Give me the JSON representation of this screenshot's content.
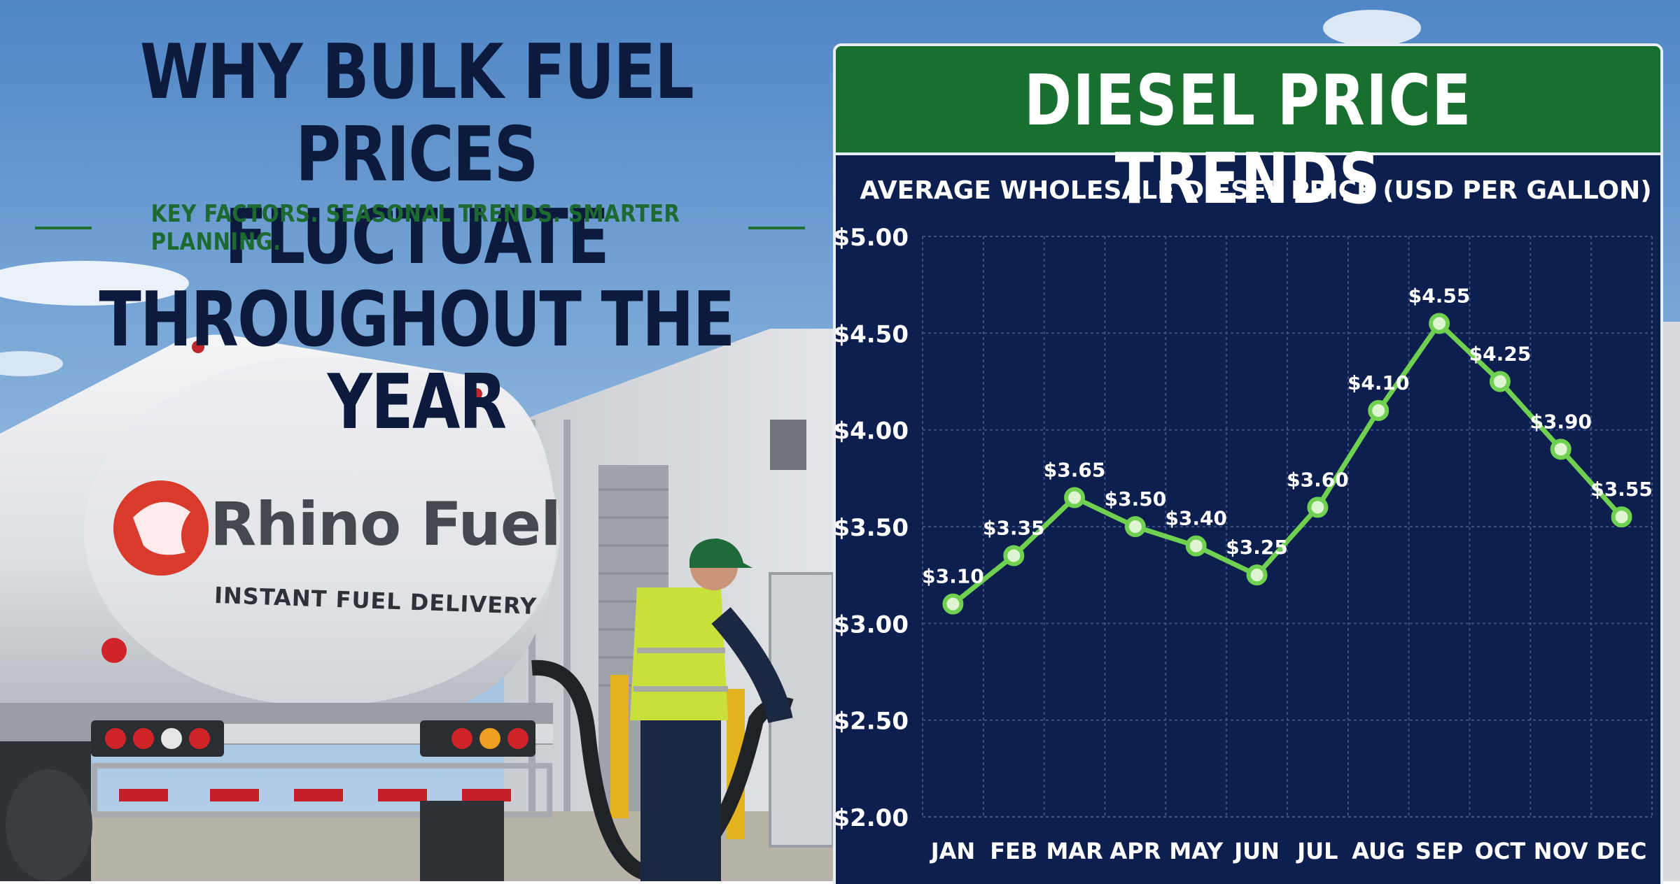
{
  "headline": {
    "line1": "WHY BULK FUEL PRICES",
    "line2": "FLUCTUATE THROUGHOUT THE YEAR",
    "subtitle": "KEY FACTORS. SEASONAL TRENDS. SMARTER PLANNING."
  },
  "truck": {
    "brand": "Rhino Fuel",
    "tagline": "INSTANT FUEL DELIVERY"
  },
  "colors": {
    "navy": "#0d1f4e",
    "green_header": "#17702f",
    "line_green": "#6fd14f",
    "headline_navy": "#0c1b3d"
  },
  "chart_data": {
    "type": "line",
    "title": "DIESEL PRICE TRENDS",
    "subtitle": "AVERAGE WHOLESALE DIESEL PRICE (USD PER GALLON)",
    "categories": [
      "JAN",
      "FEB",
      "MAR",
      "APR",
      "MAY",
      "JUN",
      "JUL",
      "AUG",
      "SEP",
      "OCT",
      "NOV",
      "DEC"
    ],
    "values": [
      3.1,
      3.35,
      3.65,
      3.5,
      3.4,
      3.25,
      3.6,
      4.1,
      4.55,
      4.25,
      3.9,
      3.55
    ],
    "data_labels": [
      "$3.10",
      "$3.35",
      "$3.65",
      "$3.50",
      "$3.40",
      "$3.25",
      "$3.60",
      "$4.10",
      "$4.55",
      "$4.25",
      "$3.90",
      "$3.55"
    ],
    "y_ticks": [
      "$2.00",
      "$2.50",
      "$3.00",
      "$3.50",
      "$4.00",
      "$4.50",
      "$5.00"
    ],
    "ylim": [
      2.0,
      5.0
    ],
    "grid": true
  }
}
